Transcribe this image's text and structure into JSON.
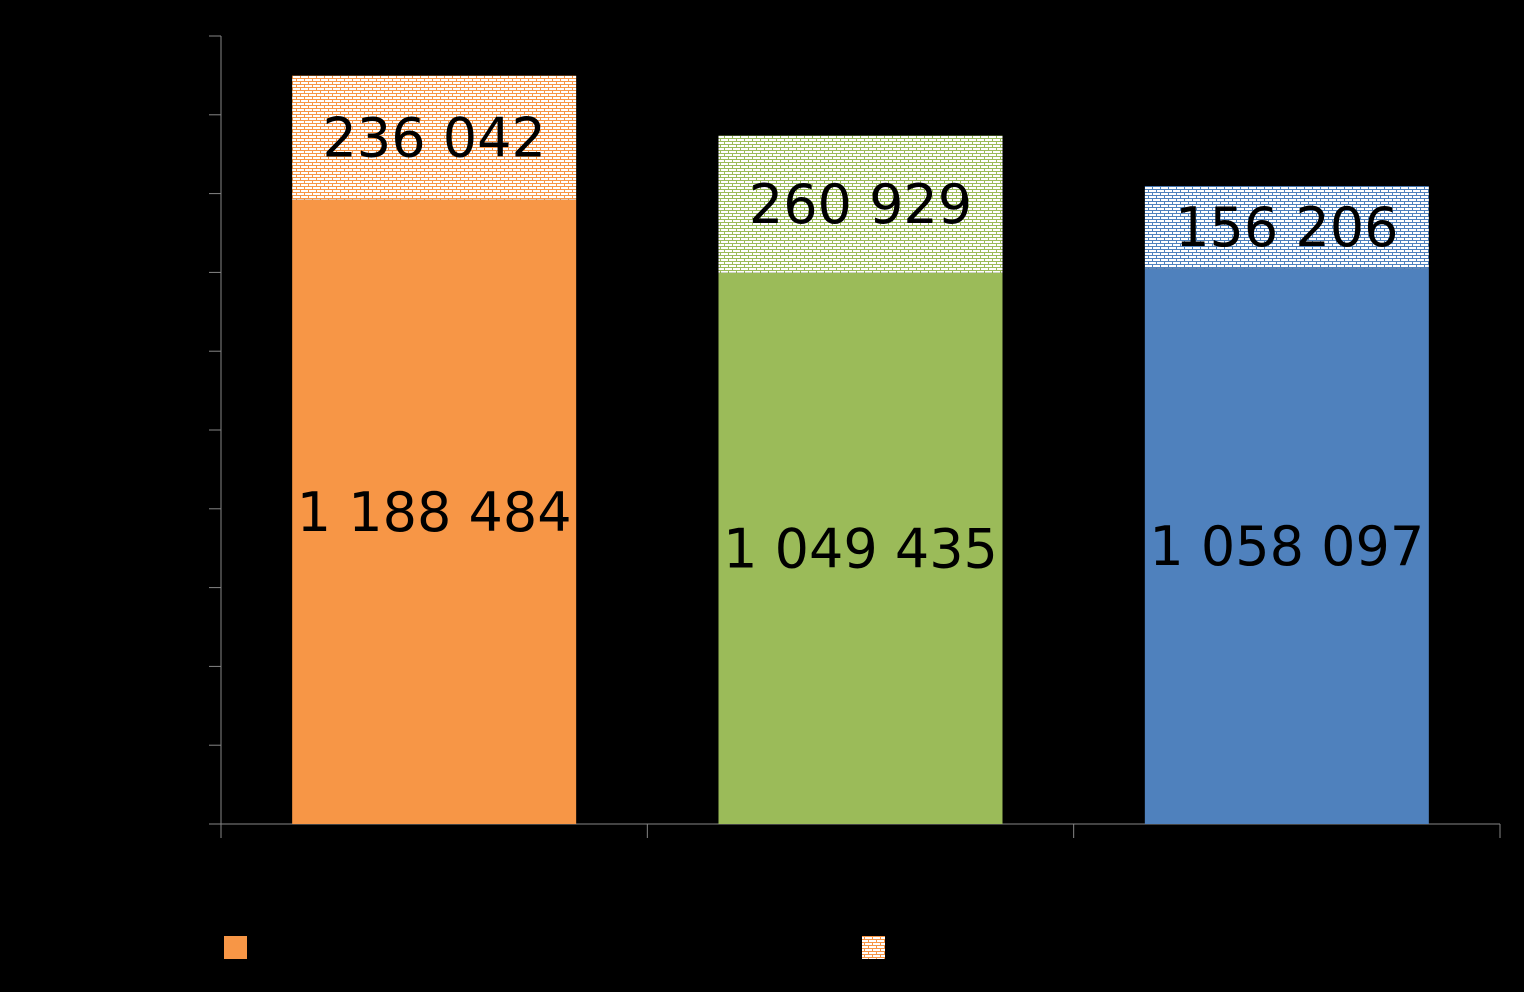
{
  "chart_data": {
    "type": "bar",
    "stacked": true,
    "title": "",
    "xlabel": "",
    "ylabel": "",
    "categories": [
      "",
      "",
      ""
    ],
    "ylim": [
      0,
      1500000
    ],
    "grid": false,
    "legend_position": "bottom",
    "series": [
      {
        "values": [
          1188484,
          1049435,
          1058097
        ],
        "labels": [
          "1 188 484",
          "1 049 435",
          "1 058 097"
        ],
        "fill": "solid",
        "colors": [
          "#F79646",
          "#9BBB59",
          "#4F81BD"
        ]
      },
      {
        "values": [
          236042,
          260929,
          156206
        ],
        "labels": [
          "236 042",
          "260 929",
          "156 206"
        ],
        "fill": "brick-pattern",
        "colors": [
          "#F79646",
          "#9BBB59",
          "#4F81BD"
        ]
      }
    ],
    "legend": [
      {
        "swatch": "solid",
        "color": "#F79646"
      },
      {
        "swatch": "brick-pattern",
        "color": "#F79646"
      }
    ]
  }
}
